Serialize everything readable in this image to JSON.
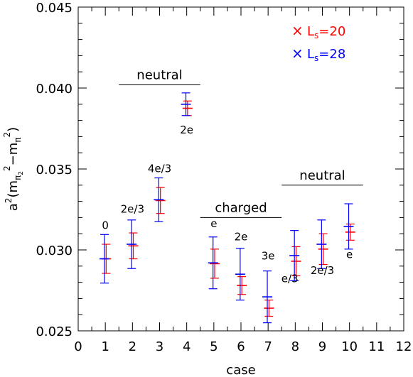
{
  "chart_data": {
    "type": "scatter",
    "xlabel": "case",
    "ylabel_base": "a",
    "ylabel_sup": "2",
    "ylabel_open": "(m",
    "ylabel_sub1": "π",
    "ylabel_subsub": "2",
    "ylabel_sq1": "2",
    "ylabel_minus": "−m",
    "ylabel_sub2": "π",
    "ylabel_sq2": "2",
    "ylabel_close": ")",
    "xlim": [
      0,
      12
    ],
    "ylim": [
      0.025,
      0.045
    ],
    "x_ticks": [
      "0",
      "1",
      "2",
      "3",
      "4",
      "5",
      "6",
      "7",
      "8",
      "9",
      "10",
      "11",
      "12"
    ],
    "y_ticks": [
      "0.025",
      "0.030",
      "0.035",
      "0.040",
      "0.045"
    ],
    "x_tick_values": [
      0,
      1,
      2,
      3,
      4,
      5,
      6,
      7,
      8,
      9,
      10,
      11,
      12
    ],
    "y_tick_values": [
      0.025,
      0.03,
      0.035,
      0.04,
      0.045
    ],
    "legend": [
      {
        "marker": "×",
        "prefix": "L",
        "sub": "s",
        "suffix": "=20",
        "color": "#ff0000"
      },
      {
        "marker": "×",
        "prefix": "L",
        "sub": "s",
        "suffix": "=28",
        "color": "#0000ff"
      }
    ],
    "series": [
      {
        "color": "#ff0000",
        "x": [
          1.03,
          2.03,
          3.03,
          4.03,
          5.03,
          6.03,
          7.03,
          8.03,
          9.03,
          10.03
        ],
        "y": [
          0.02945,
          0.03025,
          0.03305,
          0.03875,
          0.02915,
          0.0278,
          0.0264,
          0.0293,
          0.03005,
          0.0311
        ],
        "err": [
          0.0009,
          0.0008,
          0.0008,
          0.00045,
          0.0009,
          0.00055,
          0.0005,
          0.0009,
          0.00095,
          0.0005
        ]
      },
      {
        "color": "#0000ff",
        "x": [
          0.97,
          1.97,
          2.97,
          3.97,
          4.97,
          5.97,
          6.97,
          7.97,
          8.97,
          9.97
        ],
        "y": [
          0.02945,
          0.03035,
          0.0331,
          0.039,
          0.0292,
          0.0285,
          0.0271,
          0.02965,
          0.03035,
          0.03145
        ],
        "err": [
          0.0015,
          0.0015,
          0.00135,
          0.0007,
          0.0016,
          0.0016,
          0.0016,
          0.00155,
          0.0015,
          0.0014
        ]
      }
    ],
    "annotations": [
      {
        "id": "ann-0",
        "text": "0",
        "x": 1.0,
        "y": 0.0313
      },
      {
        "id": "ann-2e3-a",
        "text": "2e/3",
        "x": 2.0,
        "y": 0.0323
      },
      {
        "id": "ann-4e3",
        "text": "4e/3",
        "x": 3.0,
        "y": 0.0348
      },
      {
        "id": "ann-2e-a",
        "text": "2e",
        "x": 4.0,
        "y": 0.0372
      },
      {
        "id": "ann-e-a",
        "text": "e",
        "x": 5.0,
        "y": 0.0314
      },
      {
        "id": "ann-2e-b",
        "text": "2e",
        "x": 6.0,
        "y": 0.0306
      },
      {
        "id": "ann-3e",
        "text": "3e",
        "x": 7.0,
        "y": 0.0294
      },
      {
        "id": "ann-e3",
        "text": "e/3",
        "x": 7.8,
        "y": 0.028
      },
      {
        "id": "ann-2e3-b",
        "text": "2e/3",
        "x": 9.0,
        "y": 0.0285
      },
      {
        "id": "ann-e-b",
        "text": "e",
        "x": 10.0,
        "y": 0.0295
      }
    ],
    "groups": [
      {
        "id": "group-neutral-left",
        "text": "neutral",
        "x1": 1.5,
        "x2": 4.5,
        "y": 0.0402
      },
      {
        "id": "group-charged",
        "text": "charged",
        "x1": 4.5,
        "x2": 7.5,
        "y": 0.032
      },
      {
        "id": "group-neutral-right",
        "text": "neutral",
        "x1": 7.5,
        "x2": 10.5,
        "y": 0.034
      }
    ]
  }
}
